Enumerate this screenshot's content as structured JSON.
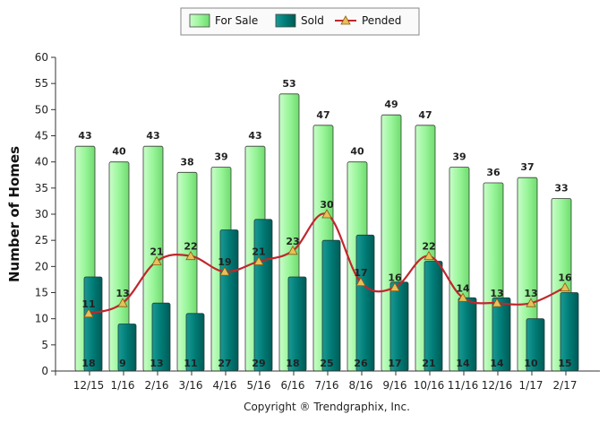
{
  "chart_data": {
    "type": "bar",
    "categories": [
      "12/15",
      "1/16",
      "2/16",
      "3/16",
      "4/16",
      "5/16",
      "6/16",
      "7/16",
      "8/16",
      "9/16",
      "10/16",
      "11/16",
      "12/16",
      "1/17",
      "2/17"
    ],
    "series": [
      {
        "name": "For Sale",
        "kind": "bar",
        "values": [
          43,
          40,
          43,
          38,
          39,
          43,
          53,
          47,
          40,
          49,
          47,
          39,
          36,
          37,
          33
        ]
      },
      {
        "name": "Sold",
        "kind": "bar",
        "values": [
          18,
          9,
          13,
          11,
          27,
          29,
          18,
          25,
          26,
          17,
          21,
          14,
          14,
          10,
          15
        ]
      },
      {
        "name": "Pended",
        "kind": "line",
        "values": [
          11,
          13,
          21,
          22,
          19,
          21,
          23,
          30,
          17,
          16,
          22,
          14,
          13,
          13,
          16
        ]
      }
    ],
    "ylabel": "Number of Homes",
    "xlabel": "",
    "ylim": [
      0,
      60
    ],
    "yticks": [
      0,
      5,
      10,
      15,
      20,
      25,
      30,
      35,
      40,
      45,
      50,
      55,
      60
    ],
    "legend_position": "top-center",
    "grid": false,
    "copyright": "Copyright ® Trendgraphix, Inc."
  },
  "colors": {
    "for_sale": "#99f599",
    "sold": "#007b76",
    "pended": "#c0272d",
    "pended_marker": "#e8c05a"
  }
}
